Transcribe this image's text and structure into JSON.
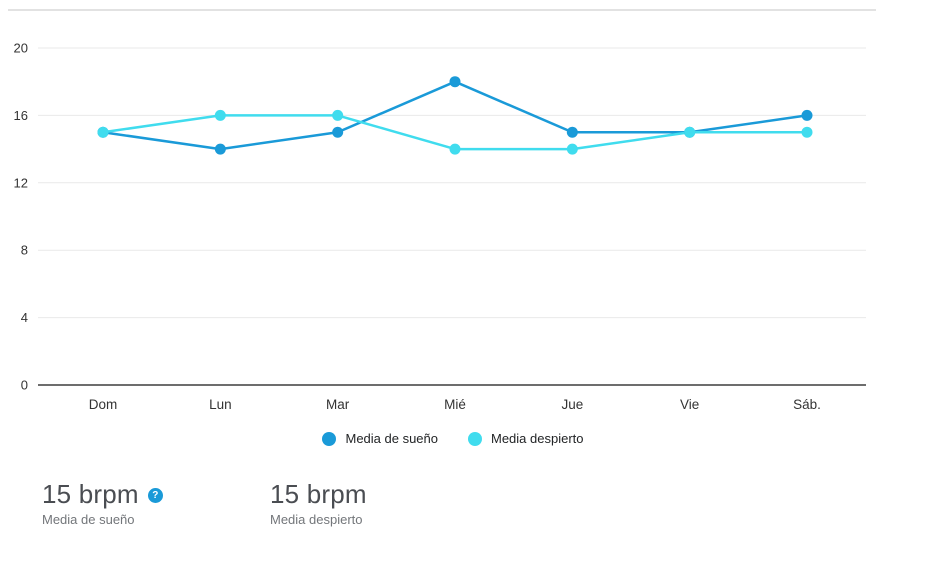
{
  "chart_data": {
    "type": "line",
    "categories": [
      "Dom",
      "Lun",
      "Mar",
      "Mié",
      "Jue",
      "Vie",
      "Sáb."
    ],
    "series": [
      {
        "name": "Media de sueño",
        "color": "#1a9ad8",
        "values": [
          15,
          14,
          15,
          18,
          15,
          15,
          16
        ]
      },
      {
        "name": "Media despierto",
        "color": "#40dcee",
        "values": [
          15,
          16,
          16,
          14,
          14,
          15,
          15
        ]
      }
    ],
    "title": "",
    "xlabel": "",
    "ylabel": "",
    "ylim": [
      0,
      20
    ],
    "yticks": [
      0,
      4,
      8,
      12,
      16,
      20
    ],
    "grid": true,
    "legend_position": "bottom"
  },
  "legend": {
    "items": [
      {
        "label": "Media de sueño",
        "color": "#1a9ad8"
      },
      {
        "label": "Media despierto",
        "color": "#40dcee"
      }
    ]
  },
  "stats": [
    {
      "value": "15 brpm",
      "label": "Media de sueño",
      "has_info_icon": true
    },
    {
      "value": "15 brpm",
      "label": "Media despierto",
      "has_info_icon": false
    }
  ],
  "icons": {
    "info": "?"
  },
  "colors": {
    "gridline": "#e9e9e9",
    "axis_zero": "#3d3d3d",
    "top_border": "#d8d8d8",
    "tick_text": "#333333"
  }
}
